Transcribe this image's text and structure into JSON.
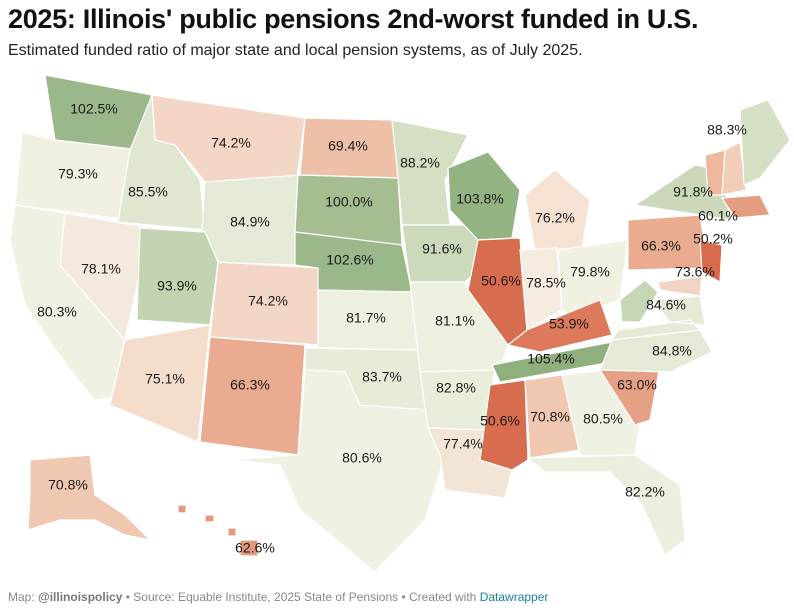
{
  "title": "2025: Illinois' public pensions 2nd-worst funded in U.S.",
  "subtitle": "Estimated funded ratio of major state and local pension systems, as of July 2025.",
  "footer": {
    "map_prefix": "Map: ",
    "map_credit": "@illinoispolicy",
    "sep1": " • Source: ",
    "source": "Equable Institute, 2025 State of Pensions",
    "sep2": " • Created with ",
    "tool": "Datawrapper"
  },
  "colors": {
    "low": "#d9694a",
    "mid": "#f1f0e1",
    "high": "#8fb07d",
    "border": "#ffffff"
  },
  "states": [
    {
      "name": "Washington",
      "value": "102.5%",
      "color": "#9bb88a"
    },
    {
      "name": "Oregon",
      "value": "79.3%",
      "color": "#f2f0e0"
    },
    {
      "name": "California",
      "value": "80.3%",
      "color": "#eff2e2"
    },
    {
      "name": "Nevada",
      "value": "78.1%",
      "color": "#f3eadd"
    },
    {
      "name": "Idaho",
      "value": "85.5%",
      "color": "#dfe7d0"
    },
    {
      "name": "Montana",
      "value": "74.2%",
      "color": "#f4d6c6"
    },
    {
      "name": "Wyoming",
      "value": "84.9%",
      "color": "#e4ead6"
    },
    {
      "name": "Utah",
      "value": "93.9%",
      "color": "#c4d4b2"
    },
    {
      "name": "Arizona",
      "value": "75.1%",
      "color": "#f5ddcc"
    },
    {
      "name": "Colorado",
      "value": "74.2%",
      "color": "#f4d6c6"
    },
    {
      "name": "New Mexico",
      "value": "66.3%",
      "color": "#eaab90"
    },
    {
      "name": "North Dakota",
      "value": "69.4%",
      "color": "#efc0a8"
    },
    {
      "name": "South Dakota",
      "value": "100.0%",
      "color": "#a4be92"
    },
    {
      "name": "Nebraska",
      "value": "102.6%",
      "color": "#9bb88a"
    },
    {
      "name": "Kansas",
      "value": "81.7%",
      "color": "#edf0df"
    },
    {
      "name": "Oklahoma",
      "value": "83.7%",
      "color": "#e6ecd8"
    },
    {
      "name": "Texas",
      "value": "80.6%",
      "color": "#eff2e2"
    },
    {
      "name": "Minnesota",
      "value": "88.2%",
      "color": "#d5dfc3"
    },
    {
      "name": "Iowa",
      "value": "91.6%",
      "color": "#ccdabb"
    },
    {
      "name": "Missouri",
      "value": "81.1%",
      "color": "#eef1e0"
    },
    {
      "name": "Arkansas",
      "value": "82.8%",
      "color": "#e9eedb"
    },
    {
      "name": "Louisiana",
      "value": "77.4%",
      "color": "#f3e5d5"
    },
    {
      "name": "Wisconsin",
      "value": "103.8%",
      "color": "#93b382"
    },
    {
      "name": "Illinois",
      "value": "50.6%",
      "color": "#d86c4e"
    },
    {
      "name": "Michigan",
      "value": "76.2%",
      "color": "#f5e2d3"
    },
    {
      "name": "Indiana",
      "value": "78.5%",
      "color": "#f3ecdf"
    },
    {
      "name": "Ohio",
      "value": "79.8%",
      "color": "#f1f0e1"
    },
    {
      "name": "Kentucky",
      "value": "53.9%",
      "color": "#dc7a5b"
    },
    {
      "name": "Tennessee",
      "value": "105.4%",
      "color": "#8fb07d"
    },
    {
      "name": "Mississippi",
      "value": "50.6%",
      "color": "#d86c4e"
    },
    {
      "name": "Alabama",
      "value": "70.8%",
      "color": "#f0c7b0"
    },
    {
      "name": "Georgia",
      "value": "80.5%",
      "color": "#eff2e2"
    },
    {
      "name": "Florida",
      "value": "82.2%",
      "color": "#ebefdd"
    },
    {
      "name": "South Carolina",
      "value": "63.0%",
      "color": "#e6a086"
    },
    {
      "name": "North Carolina",
      "value": "84.8%",
      "color": "#e4ead6"
    },
    {
      "name": "Virginia",
      "value": "84.6%",
      "color": "#e5ebd7"
    },
    {
      "name": "West Virginia",
      "value": "",
      "color": "#c6d5b4"
    },
    {
      "name": "Pennsylvania",
      "value": "66.3%",
      "color": "#eaab90"
    },
    {
      "name": "New York",
      "value": "91.8%",
      "color": "#cbd9ba"
    },
    {
      "name": "New Jersey",
      "value": "50.2%",
      "color": "#d76a4c"
    },
    {
      "name": "Maryland",
      "value": "73.6%",
      "color": "#f3d4c2"
    },
    {
      "name": "Vermont",
      "value": "",
      "color": "#eeb89e"
    },
    {
      "name": "New Hampshire",
      "value": "",
      "color": "#f2cdb8"
    },
    {
      "name": "Massachusetts",
      "value": "60.1%",
      "color": "#e59d82"
    },
    {
      "name": "Maine",
      "value": "88.3%",
      "color": "#d5dfc3"
    },
    {
      "name": "Alaska",
      "value": "70.8%",
      "color": "#f0c7b0"
    },
    {
      "name": "Hawaii",
      "value": "62.6%",
      "color": "#e4987c"
    }
  ]
}
